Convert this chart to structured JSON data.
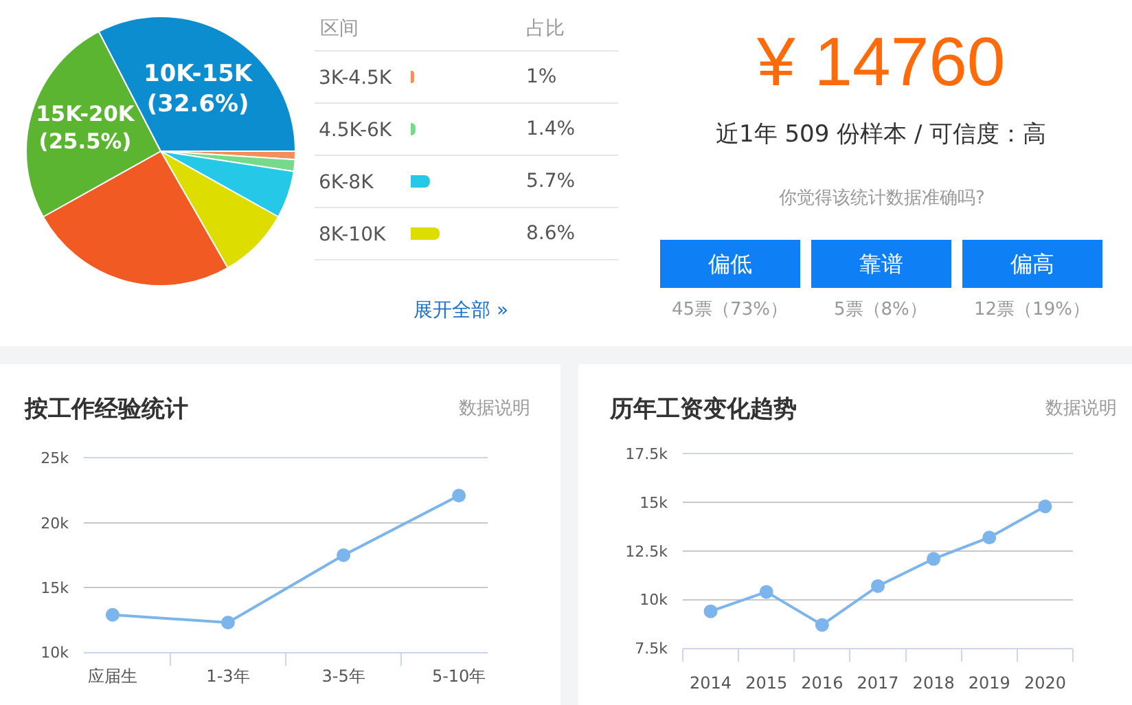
{
  "chart_data": [
    {
      "type": "pie",
      "categories": [
        "3K-4.5K",
        "4.5K-6K",
        "6K-8K",
        "8K-10K",
        null,
        "15K-20K",
        "10K-15K"
      ],
      "values": [
        1,
        1.4,
        5.7,
        8.6,
        25.2,
        25.5,
        32.6
      ],
      "colors": [
        "#f28f5c",
        "#77d98a",
        "#25c8e6",
        "#dddd00",
        "#f15a22",
        "#5cb531",
        "#0b8dcf"
      ],
      "value_labels": [
        "1%",
        "1.4%",
        "5.7%",
        "8.6%",
        null,
        "(25.5%)",
        "(32.6%)"
      ],
      "legend": "right",
      "legend_title": "区间",
      "annotations": [
        "占比",
        "展开全部 »"
      ]
    },
    {
      "type": "other",
      "title": "¥ 14760",
      "subtitle": "近1年 509 份样本 / 可信度：高",
      "annotations": [
        "你觉得该统计数据准确吗?",
        "偏低",
        "靠谱",
        "偏高",
        "45票（73%）",
        "5票（8%）",
        "12票（19%）"
      ]
    },
    {
      "type": "line",
      "title": "按工作经验统计",
      "annotations": [
        "数据说明"
      ],
      "categories": [
        "应届生",
        "1-3年",
        "3-5年",
        "5-10年"
      ],
      "values": [
        12900,
        12300,
        17500,
        22100
      ],
      "color": "#7cb5ec",
      "ylim": [
        10000,
        25000
      ],
      "yticks": [
        {
          "value": 10000,
          "label": "10k"
        },
        {
          "value": 15000,
          "label": "15k"
        },
        {
          "value": 20000,
          "label": "20k"
        },
        {
          "value": 25000,
          "label": "25k"
        }
      ],
      "grid": "y",
      "marker": "circle"
    },
    {
      "type": "line",
      "title": "历年工资变化趋势",
      "annotations": [
        "数据说明"
      ],
      "x": [
        2014,
        2015,
        2016,
        2017,
        2018,
        2019,
        2020
      ],
      "values": [
        9400,
        10400,
        8700,
        10700,
        12100,
        13200,
        14800
      ],
      "color": "#7cb5ec",
      "xlim": [
        2013.5,
        2020.5
      ],
      "xticks": [
        {
          "value": 2013.5,
          "label": null
        },
        2014,
        {
          "value": 2014.5,
          "label": null
        },
        2015,
        {
          "value": 2015.5,
          "label": null
        },
        2016,
        {
          "value": 2016.5,
          "label": null
        },
        2017,
        {
          "value": 2017.5,
          "label": null
        },
        2018,
        {
          "value": 2018.5,
          "label": null
        },
        2019,
        {
          "value": 2019.5,
          "label": null
        },
        2020,
        {
          "value": 2020.5,
          "label": null
        }
      ],
      "ylim": [
        7500,
        17500
      ],
      "yticks": [
        {
          "value": 7500,
          "label": "7.5k"
        },
        {
          "value": 10000,
          "label": "10k"
        },
        {
          "value": 12500,
          "label": "12.5k"
        },
        {
          "value": 15000,
          "label": "15k"
        },
        {
          "value": 17500,
          "label": "17.5k"
        }
      ],
      "grid": "y",
      "marker": "circle"
    }
  ]
}
